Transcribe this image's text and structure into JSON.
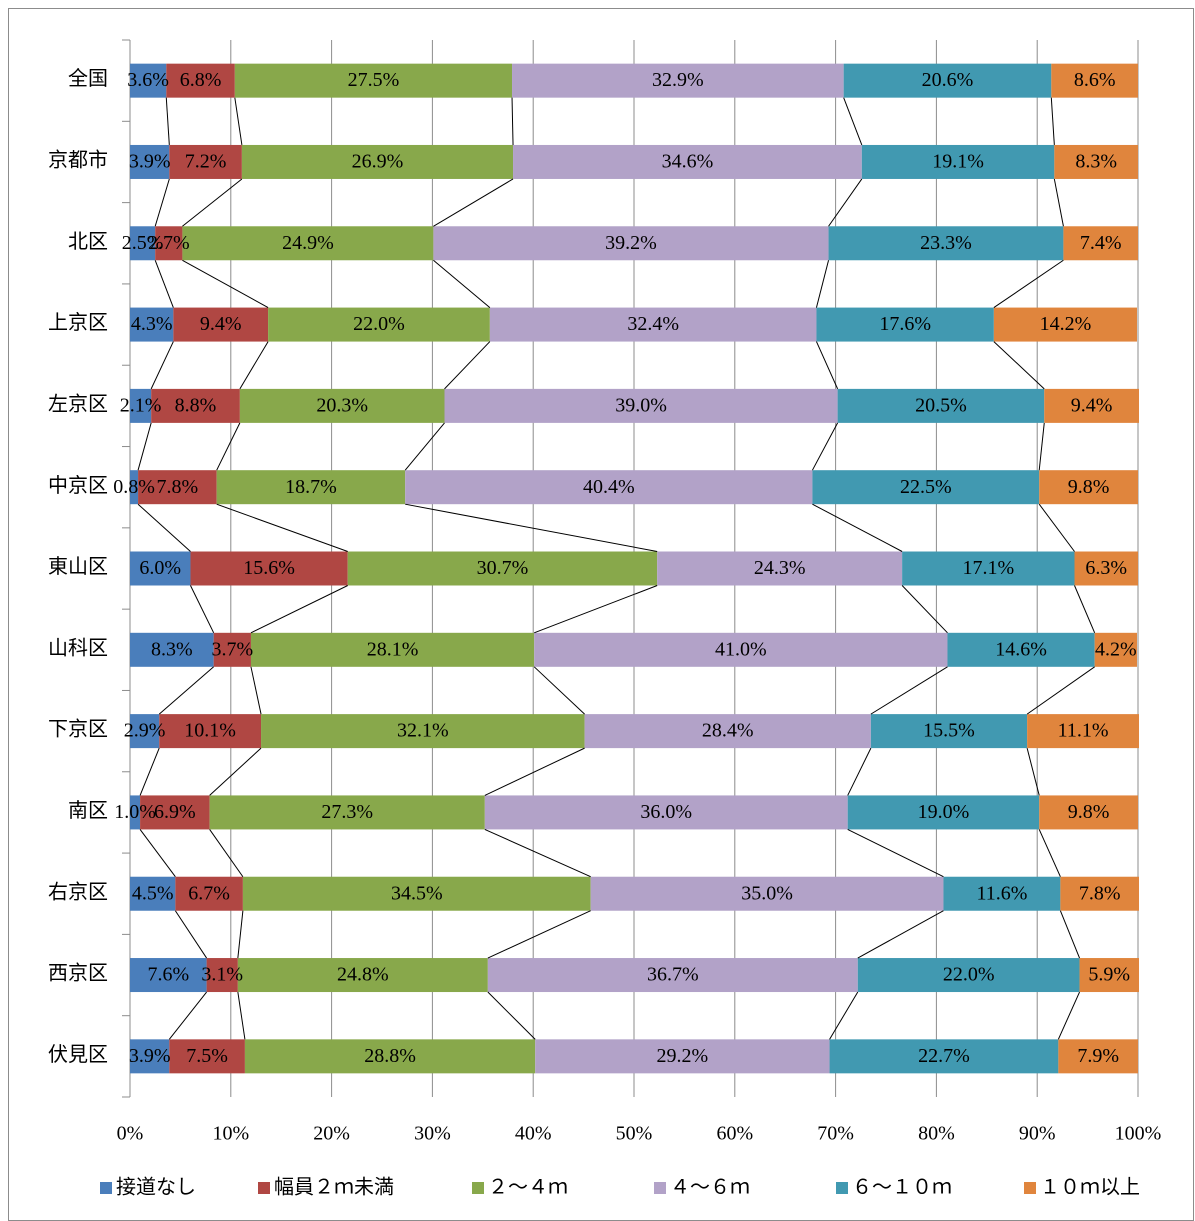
{
  "chart_data": {
    "type": "stacked_bar_100",
    "categories": [
      "全国",
      "京都市",
      "北区",
      "上京区",
      "左京区",
      "中京区",
      "東山区",
      "山科区",
      "下京区",
      "南区",
      "右京区",
      "西京区",
      "伏見区"
    ],
    "series": [
      {
        "name": "接道なし",
        "color": "#4a7ebb",
        "values": [
          3.6,
          3.9,
          2.5,
          4.3,
          2.1,
          0.8,
          6.0,
          8.3,
          2.9,
          1.0,
          4.5,
          7.6,
          3.9
        ],
        "value_labels": [
          "3.6%",
          "3.9%",
          "2.5%",
          "4.3%",
          "2.1%",
          "0.8%",
          "6.0%",
          "8.3%",
          "2.9%",
          "1.0%",
          "4.5%",
          "7.6%",
          "3.9%"
        ]
      },
      {
        "name": "幅員２ｍ未満",
        "color": "#b04743",
        "values": [
          6.8,
          7.2,
          2.7,
          9.4,
          8.8,
          7.8,
          15.6,
          3.7,
          10.1,
          6.9,
          6.7,
          3.1,
          7.5
        ],
        "value_labels": [
          "6.8%",
          "7.2%",
          "2.7%",
          "9.4%",
          "8.8%",
          "7.8%",
          "15.6%",
          "3.7%",
          "10.1%",
          "6.9%",
          "6.7%",
          "3.1%",
          "7.5%"
        ]
      },
      {
        "name": "２～４ｍ",
        "color": "#88a84b",
        "values": [
          27.5,
          26.9,
          24.9,
          22.0,
          20.3,
          18.7,
          30.7,
          28.1,
          32.1,
          27.3,
          34.5,
          24.8,
          28.8
        ],
        "value_labels": [
          "27.5%",
          "26.9%",
          "24.9%",
          "22.0%",
          "20.3%",
          "18.7%",
          "30.7%",
          "28.1%",
          "32.1%",
          "27.3%",
          "34.5%",
          "24.8%",
          "28.8%"
        ]
      },
      {
        "name": "４～６ｍ",
        "color": "#b2a2c8",
        "values": [
          32.9,
          34.6,
          39.2,
          32.4,
          39.0,
          40.4,
          24.3,
          41.0,
          28.4,
          36.0,
          35.0,
          36.7,
          29.2
        ],
        "value_labels": [
          "32.9%",
          "34.6%",
          "39.2%",
          "32.4%",
          "39.0%",
          "40.4%",
          "24.3%",
          "41.0%",
          "28.4%",
          "36.0%",
          "35.0%",
          "36.7%",
          "29.2%"
        ]
      },
      {
        "name": "６～１０ｍ",
        "color": "#4199b1",
        "values": [
          20.6,
          19.1,
          23.3,
          17.6,
          20.5,
          22.5,
          17.1,
          14.6,
          15.5,
          19.0,
          11.6,
          22.0,
          22.7
        ],
        "value_labels": [
          "20.6%",
          "19.1%",
          "23.3%",
          "17.6%",
          "20.5%",
          "22.5%",
          "17.1%",
          "14.6%",
          "15.5%",
          "19.0%",
          "11.6%",
          "22.0%",
          "22.7%"
        ]
      },
      {
        "name": "１０ｍ以上",
        "color": "#e0853d",
        "values": [
          8.6,
          8.3,
          7.4,
          14.2,
          9.4,
          9.8,
          6.3,
          4.2,
          11.1,
          9.8,
          7.8,
          5.9,
          7.9
        ],
        "value_labels": [
          "8.6%",
          "8.3%",
          "7.4%",
          "14.2%",
          "9.4%",
          "9.8%",
          "6.3%",
          "4.2%",
          "11.1%",
          "9.8%",
          "7.8%",
          "5.9%",
          "7.9%"
        ]
      }
    ],
    "xlim": [
      0,
      100
    ],
    "xticks": [
      {
        "value": 0,
        "label": "0%"
      },
      {
        "value": 10,
        "label": "10%"
      },
      {
        "value": 20,
        "label": "20%"
      },
      {
        "value": 30,
        "label": "30%"
      },
      {
        "value": 40,
        "label": "40%"
      },
      {
        "value": 50,
        "label": "50%"
      },
      {
        "value": 60,
        "label": "60%"
      },
      {
        "value": 70,
        "label": "70%"
      },
      {
        "value": 80,
        "label": "80%"
      },
      {
        "value": 90,
        "label": "90%"
      },
      {
        "value": 100,
        "label": "100%"
      }
    ],
    "grid": true,
    "legend": "bottom"
  }
}
